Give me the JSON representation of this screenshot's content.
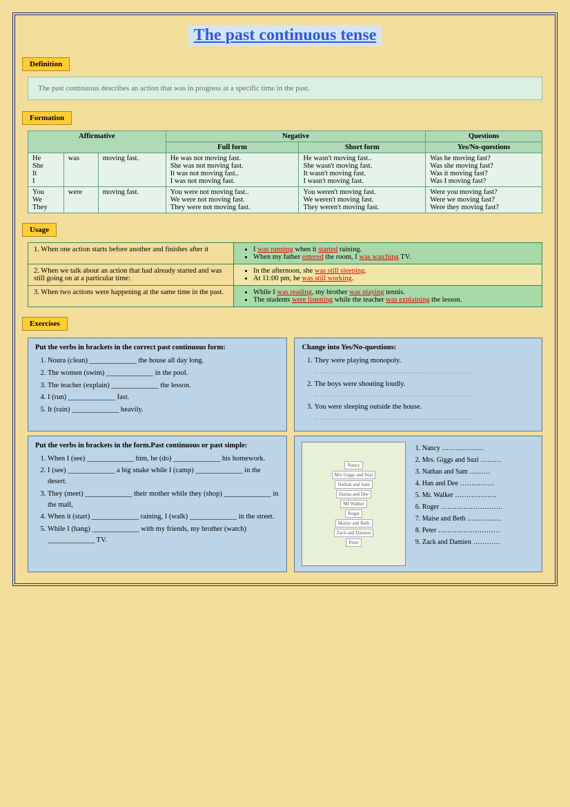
{
  "title": "The past continuous tense",
  "labels": {
    "definition": "Definition",
    "formation": "Formation",
    "usage": "Usage",
    "exercises": "Exercises"
  },
  "definition_text": "The past continuous describes an action that was in progress at a specific time in the past.",
  "formation": {
    "headers": {
      "aff": "Affirmative",
      "neg": "Negative",
      "full": "Full form",
      "short": "Short form",
      "q": "Questions",
      "yesno": "Yes/No-questions"
    },
    "rows": [
      {
        "pron": "He\nShe\nIt\nI",
        "aux": "was",
        "verb": "moving fast.",
        "full": "He was not moving fast.\nShe was not moving fast.\nIt was not moving fast..\nI was not moving fast.",
        "short": "He wasn't moving fast..\nShe wasn't moving fast.\nIt wasn't moving fast.\nI wasn't moving fast.",
        "q": "Was he moving fast?\nWas she moving fast?\nWas it moving fast?\nWas I moving fast?"
      },
      {
        "pron": "You\nWe\nThey",
        "aux": "were",
        "verb": "moving fast.",
        "full": "You were not moving fast..\nWe were not moving fast.\nThey were not moving fast.",
        "short": "You weren't moving fast.\nWe weren't moving fast.\nThey weren't moving fast.",
        "q": "Were you moving fast?\nWere we moving fast?\nWere they moving fast?"
      }
    ]
  },
  "usage": [
    {
      "num": "1.",
      "left": "When one action starts before another and finishes after it",
      "bullets": [
        "I <r>was running</r> when it <r>started</r> raining.",
        "When my father <r>entered</r> the room, I <r>was watching</r> TV."
      ],
      "class": "right"
    },
    {
      "num": "2.",
      "left": "When we talk about an action that had already started and was still going on at a particular time:",
      "bullets": [
        "In the afternoon, she <r>was still sleeping</r>.",
        "At 11:00 pm, he <r>was still working</r>."
      ],
      "class": "right mid"
    },
    {
      "num": "3.",
      "left": "When two actions were happening at the same time in the past.",
      "bullets": [
        "While I <r>was reading</r>, my brother <r>was playing</r> tennis.",
        "The students <r>were listening</r> while the teacher <r>was explaining</r> the lesson."
      ],
      "class": "right"
    }
  ],
  "ex1": {
    "title": "Put the verbs in brackets in the correct past continuous form:",
    "items": [
      "Noura (clean) _____________ the house all day long.",
      "The women (swim) _____________ in the pool.",
      "The teacher (explain) _____________ the lesson.",
      "I (run) _____________ fast.",
      "It (rain) _____________ heavily."
    ]
  },
  "ex2": {
    "title": "Change into Yes/No-questions:",
    "items": [
      "They were playing monopoly.",
      "The boys were shouting loudly.",
      "You were sleeping outside the house."
    ]
  },
  "ex3": {
    "title": "Put the verbs in brackets in the form.Past continuous or past simple:",
    "items": [
      "When I (see) _____________ him, he (do) _____________ his homework.",
      "I (see) _____________ a big snake while I (camp) _____________ in the desert.",
      "They (meet) _____________ their mother while they (shop) _____________ in the mall,",
      "When it (start) _____________ raining, I (walk) _____________ in the street.",
      "While I (hang) _____________ with my friends, my brother (watch) _____________ TV."
    ]
  },
  "ex4": {
    "names": [
      "Nancy ………………",
      "Mrs. Giggs and Suzi ………",
      "Nathan and Sam ………",
      "Han and Dee ……………",
      "Mr. Walker ………………",
      "Roger ………………………",
      "Maise and Beth ……………",
      "Peter ………………………",
      "Zack and Damien …………"
    ],
    "img_labels": [
      "Nancy",
      "Mrs Giggs and Suzi",
      "Nathan and Sam",
      "Hanna and Dee",
      "Mr Walker",
      "Roger",
      "Maisie and Beth",
      "Zach and Damien",
      "Peter"
    ]
  },
  "colors": {
    "page_bg": "#f3dd9a",
    "title_fg": "#2b5cd9",
    "title_bg": "#d6e3f5",
    "label_bg": "#ffcc33",
    "def_bg": "#daf0e3",
    "table_head": "#b0d9b8",
    "table_body": "#e6f3ea",
    "usage_green": "#a8d9a8",
    "usage_yellow": "#f0e6a8",
    "ex_bg": "#bcd4e6",
    "border_dark": "#1a2b6d",
    "red": "#d00"
  }
}
